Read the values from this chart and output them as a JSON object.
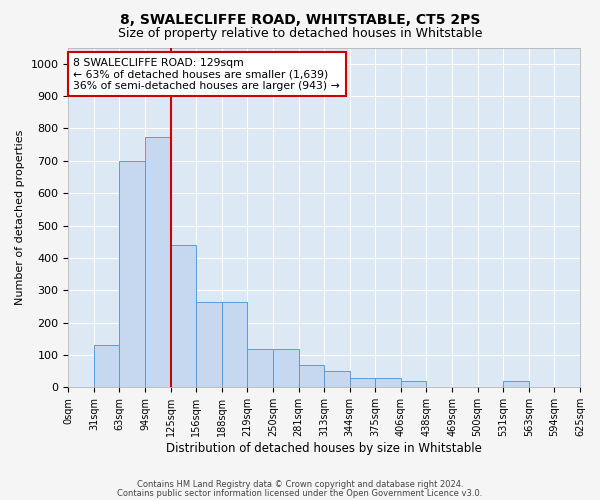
{
  "title": "8, SWALECLIFFE ROAD, WHITSTABLE, CT5 2PS",
  "subtitle": "Size of property relative to detached houses in Whitstable",
  "xlabel": "Distribution of detached houses by size in Whitstable",
  "ylabel": "Number of detached properties",
  "bar_color": "#c5d8f0",
  "bar_edge_color": "#5b9bd5",
  "background_color": "#dde8f5",
  "grid_color": "#ffffff",
  "bin_left_labels": [
    "0sqm",
    "31sqm",
    "63sqm",
    "94sqm",
    "125sqm",
    "156sqm",
    "188sqm",
    "219sqm",
    "250sqm",
    "281sqm",
    "313sqm",
    "344sqm",
    "375sqm",
    "406sqm",
    "438sqm",
    "469sqm",
    "500sqm",
    "531sqm",
    "563sqm",
    "594sqm",
    "625sqm"
  ],
  "bar_heights": [
    0,
    130,
    700,
    775,
    440,
    265,
    265,
    120,
    120,
    70,
    50,
    30,
    30,
    20,
    0,
    0,
    0,
    20,
    0,
    0
  ],
  "red_line_bin_index": 4,
  "red_line_color": "#cc0000",
  "annotation_text": "8 SWALECLIFFE ROAD: 129sqm\n← 63% of detached houses are smaller (1,639)\n36% of semi-detached houses are larger (943) →",
  "annotation_box_color": "#ffffff",
  "annotation_box_edge_color": "#cc0000",
  "ylim": [
    0,
    1050
  ],
  "yticks": [
    0,
    100,
    200,
    300,
    400,
    500,
    600,
    700,
    800,
    900,
    1000
  ],
  "footer_line1": "Contains HM Land Registry data © Crown copyright and database right 2024.",
  "footer_line2": "Contains public sector information licensed under the Open Government Licence v3.0.",
  "fig_facecolor": "#f5f5f5"
}
